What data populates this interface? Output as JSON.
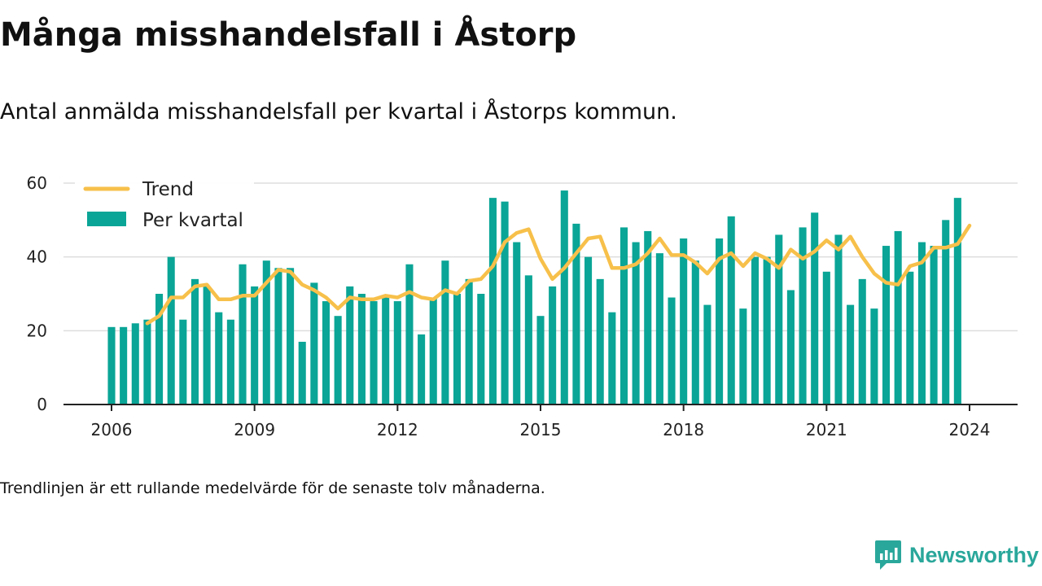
{
  "header": {
    "title": "Många misshandelsfall i Åstorp",
    "subtitle": "Antal anmälda misshandelsfall per kvartal i Åstorps kommun."
  },
  "footer": {
    "note": "Trendlinjen är ett rullande medelvärde för de senaste tolv månaderna.",
    "brand": "Newsworthy"
  },
  "colors": {
    "bar": "#0aa596",
    "trend": "#f7c04a",
    "axis": "#222222",
    "grid": "#dddddd",
    "brand": "#2aa79b"
  },
  "chart_data": {
    "type": "bar",
    "x_start": 2006,
    "x_step": 0.25,
    "values": [
      21,
      21,
      22,
      23,
      30,
      40,
      23,
      34,
      32,
      25,
      23,
      38,
      32,
      39,
      37,
      37,
      17,
      33,
      28,
      24,
      32,
      30,
      28,
      29,
      28,
      38,
      19,
      29,
      39,
      30,
      34,
      30,
      56,
      55,
      44,
      35,
      24,
      32,
      58,
      49,
      40,
      34,
      25,
      48,
      44,
      47,
      41,
      29,
      45,
      39,
      27,
      45,
      51,
      26,
      40,
      40,
      46,
      31,
      48,
      52,
      36,
      46,
      27,
      34,
      26,
      43,
      47,
      36,
      44,
      43,
      50,
      56
    ],
    "series": [
      {
        "name": "Trend",
        "type": "line",
        "start_index": 3,
        "values": [
          22,
          24,
          29,
          29,
          32,
          32.5,
          28.5,
          28.5,
          29.5,
          29.5,
          33,
          36.5,
          36,
          32.5,
          31,
          29,
          26,
          29,
          28.5,
          28.5,
          29.5,
          29,
          30.5,
          29,
          28.5,
          31,
          30,
          33.5,
          34,
          37.5,
          44,
          46.5,
          47.5,
          39.5,
          34,
          37,
          41,
          45,
          45.5,
          37,
          37,
          38,
          41,
          45,
          40.5,
          40.5,
          38.5,
          35.5,
          39.5,
          41,
          37.5,
          41,
          39.5,
          37,
          42,
          39.5,
          41.5,
          44.5,
          42,
          45.5,
          40,
          35.5,
          33,
          32.5,
          37.5,
          38.5,
          42.5,
          42.5,
          43.5,
          48.5
        ]
      },
      {
        "name": "Per kvartal",
        "type": "bar"
      }
    ],
    "xticks": [
      "2006",
      "2009",
      "2012",
      "2015",
      "2018",
      "2021",
      "2024"
    ],
    "yticks": [
      "0",
      "20",
      "40",
      "60"
    ],
    "xlim": [
      2006,
      2024
    ],
    "ylim": [
      0,
      60
    ],
    "grid": true,
    "legend": "top-left"
  }
}
